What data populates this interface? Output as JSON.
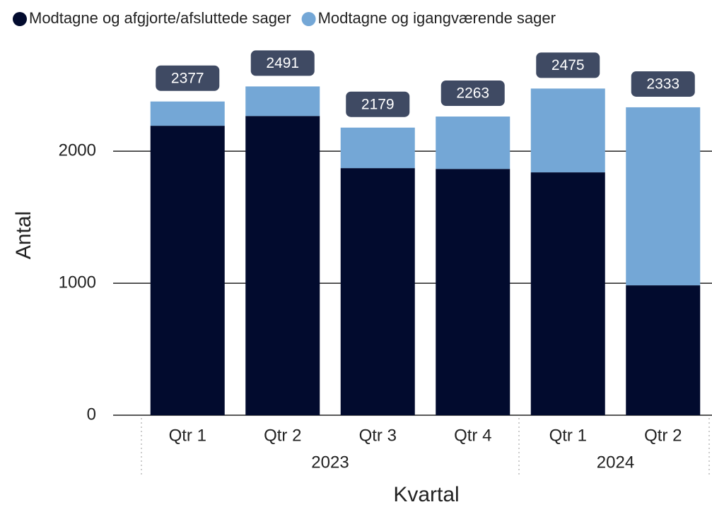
{
  "chart_data": {
    "type": "stacked_bar",
    "groups": [
      {
        "name": "2023",
        "categories": [
          "Qtr 1",
          "Qtr 2",
          "Qtr 3",
          "Qtr 4"
        ]
      },
      {
        "name": "2024",
        "categories": [
          "Qtr 1",
          "Qtr 2"
        ]
      }
    ],
    "series": [
      {
        "name": "Modtagne og afgjorte/afsluttede sager",
        "color": "#020b2e",
        "values": [
          2193,
          2267,
          1872,
          1866,
          1840,
          984
        ]
      },
      {
        "name": "Modtagne og igangværende sager",
        "color": "#74a7d6",
        "values": [
          184,
          224,
          307,
          397,
          635,
          1349
        ]
      }
    ],
    "totals": [
      2377,
      2491,
      2179,
      2263,
      2475,
      2333
    ],
    "ylabel": "Antal",
    "xlabel": "Kvartal",
    "ylim": [
      0,
      2750
    ],
    "yticks": [
      0,
      1000,
      2000
    ],
    "grid": true,
    "legend": "top"
  }
}
